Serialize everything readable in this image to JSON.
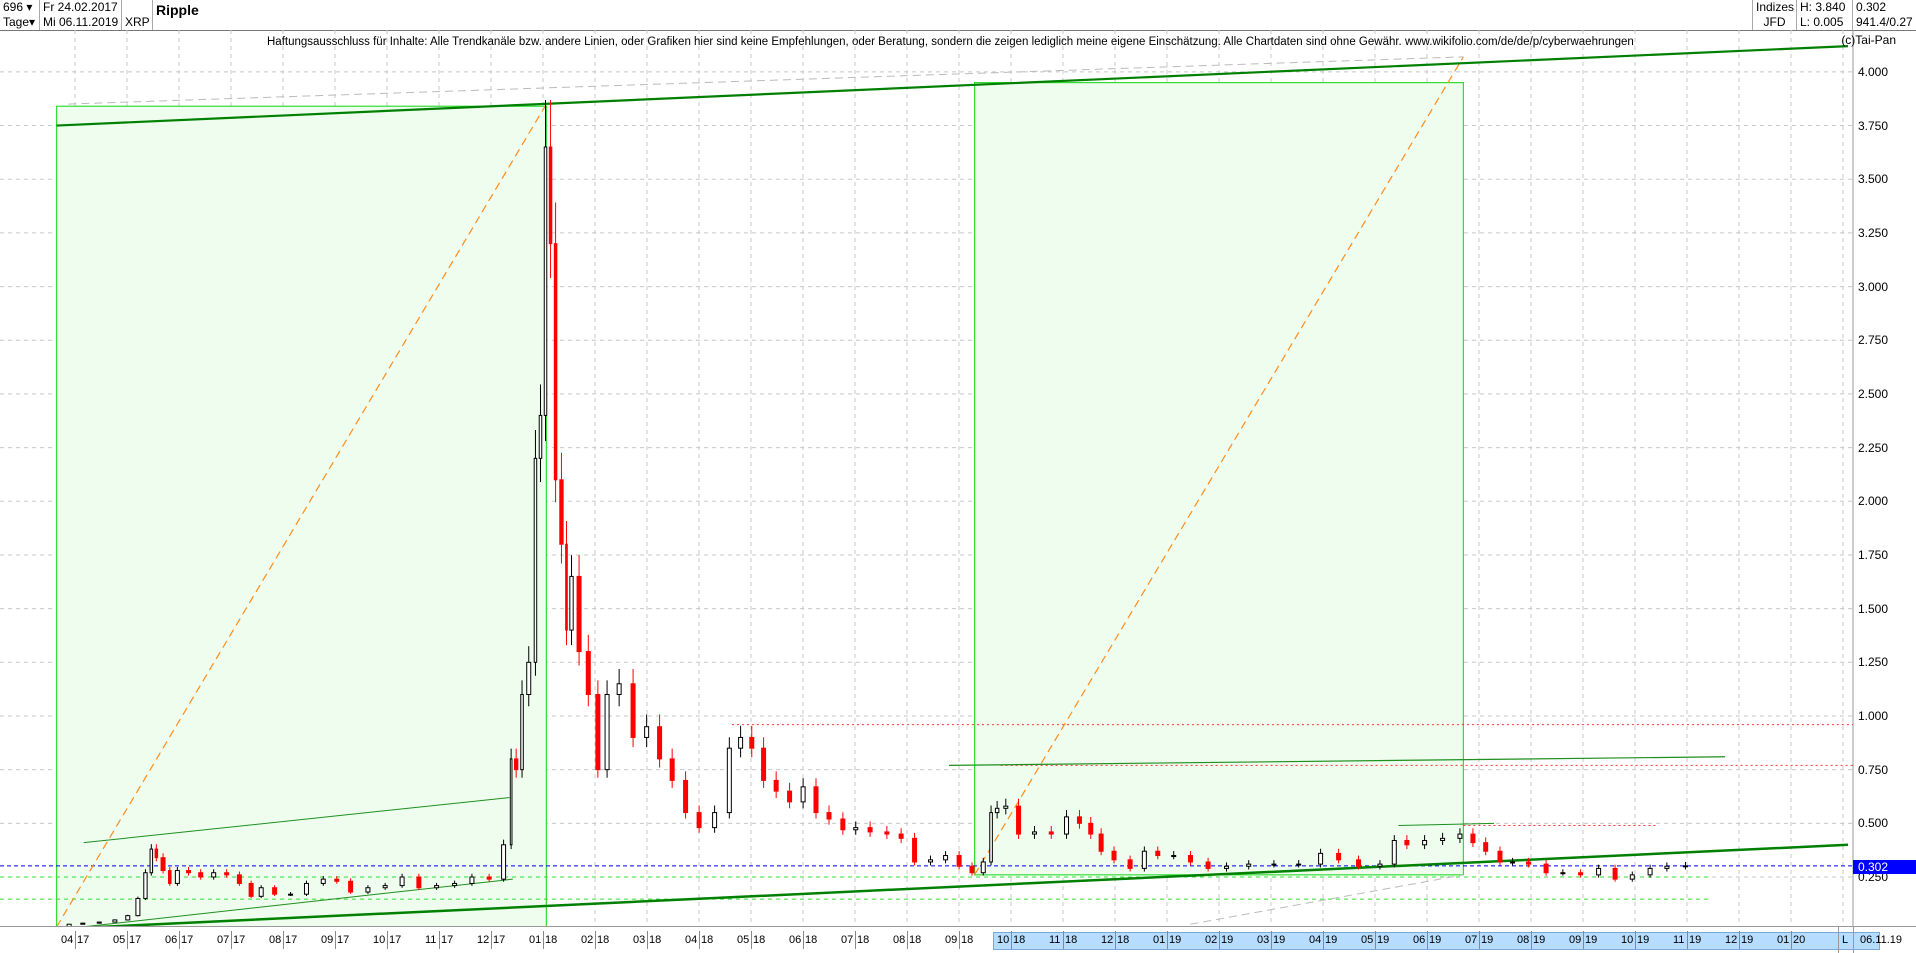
{
  "header": {
    "count": "696",
    "period": "Tage",
    "date_from": "Fr 24.02.2017",
    "date_to": "Mi 06.11.2019",
    "symbol": "XRP",
    "title": "Ripple",
    "group": "Indizes",
    "broker": "JFD",
    "high": "H: 3.840",
    "low": "L: 0.005",
    "last": "0.302",
    "extra": "941.4/0.27"
  },
  "disclaimer": "Haftungsausschluss für Inhalte: Alle Trendkanäle bzw. andere Linien, oder Grafiken hier sind keine Empfehlungen, oder Beratung, sondern die zeigen lediglich meine eigene Einschätzung. Alle Chartdaten sind ohne Gewähr.  www.wikifolio.com/de/de/p/cyberwaehrungen",
  "copyright": "(c)Tai-Pan",
  "footer": {
    "scale_mode": "L",
    "last_date": "06.11.19"
  },
  "colors": {
    "up": "#000000",
    "down": "#ff0000",
    "box": "#33dd33",
    "box_fill": "#eefdee",
    "trend": "#008000",
    "current": "#0000ff"
  },
  "chart_data": {
    "type": "candlestick",
    "title": "Ripple",
    "ylim": [
      0,
      4.1
    ],
    "grid": true,
    "y_ticks": [
      "0.250",
      "0.500",
      "0.750",
      "1.000",
      "1.250",
      "1.500",
      "1.750",
      "2.000",
      "2.250",
      "2.500",
      "2.750",
      "3.000",
      "3.250",
      "3.500",
      "3.750",
      "4.000"
    ],
    "x_ticks": [
      [
        "04",
        "17"
      ],
      [
        "05",
        "17"
      ],
      [
        "06",
        "17"
      ],
      [
        "07",
        "17"
      ],
      [
        "08",
        "17"
      ],
      [
        "09",
        "17"
      ],
      [
        "10",
        "17"
      ],
      [
        "11",
        "17"
      ],
      [
        "12",
        "17"
      ],
      [
        "01",
        "18"
      ],
      [
        "02",
        "18"
      ],
      [
        "03",
        "18"
      ],
      [
        "04",
        "18"
      ],
      [
        "05",
        "18"
      ],
      [
        "06",
        "18"
      ],
      [
        "07",
        "18"
      ],
      [
        "08",
        "18"
      ],
      [
        "09",
        "18"
      ],
      [
        "10",
        "18"
      ],
      [
        "11",
        "18"
      ],
      [
        "12",
        "18"
      ],
      [
        "01",
        "19"
      ],
      [
        "02",
        "19"
      ],
      [
        "03",
        "19"
      ],
      [
        "04",
        "19"
      ],
      [
        "05",
        "19"
      ],
      [
        "06",
        "19"
      ],
      [
        "07",
        "19"
      ],
      [
        "08",
        "19"
      ],
      [
        "09",
        "19"
      ],
      [
        "10",
        "19"
      ],
      [
        "11",
        "19"
      ],
      [
        "12",
        "19"
      ],
      [
        "01",
        "20"
      ]
    ],
    "current_price": "0.302",
    "series": [
      [
        "2017-02-24",
        0.005
      ],
      [
        "2017-03-15",
        0.006
      ],
      [
        "2017-03-25",
        0.008
      ],
      [
        "2017-04-01",
        0.03
      ],
      [
        "2017-04-10",
        0.035
      ],
      [
        "2017-04-20",
        0.04
      ],
      [
        "2017-04-28",
        0.05
      ],
      [
        "2017-05-05",
        0.07
      ],
      [
        "2017-05-10",
        0.15
      ],
      [
        "2017-05-14",
        0.27
      ],
      [
        "2017-05-17",
        0.38
      ],
      [
        "2017-05-20",
        0.34
      ],
      [
        "2017-05-25",
        0.28
      ],
      [
        "2017-05-28",
        0.22
      ],
      [
        "2017-06-03",
        0.28
      ],
      [
        "2017-06-10",
        0.27
      ],
      [
        "2017-06-17",
        0.25
      ],
      [
        "2017-06-25",
        0.27
      ],
      [
        "2017-07-02",
        0.26
      ],
      [
        "2017-07-10",
        0.22
      ],
      [
        "2017-07-16",
        0.16
      ],
      [
        "2017-07-22",
        0.2
      ],
      [
        "2017-08-01",
        0.17
      ],
      [
        "2017-08-10",
        0.17
      ],
      [
        "2017-08-20",
        0.22
      ],
      [
        "2017-08-30",
        0.24
      ],
      [
        "2017-09-05",
        0.23
      ],
      [
        "2017-09-15",
        0.18
      ],
      [
        "2017-09-25",
        0.2
      ],
      [
        "2017-10-05",
        0.21
      ],
      [
        "2017-10-15",
        0.25
      ],
      [
        "2017-10-25",
        0.2
      ],
      [
        "2017-11-05",
        0.21
      ],
      [
        "2017-11-15",
        0.22
      ],
      [
        "2017-11-25",
        0.25
      ],
      [
        "2017-12-05",
        0.24
      ],
      [
        "2017-12-12",
        0.4
      ],
      [
        "2017-12-14",
        0.8
      ],
      [
        "2017-12-18",
        0.75
      ],
      [
        "2017-12-21",
        1.1
      ],
      [
        "2017-12-26",
        1.25
      ],
      [
        "2017-12-29",
        2.2
      ],
      [
        "2018-01-01",
        2.4
      ],
      [
        "2018-01-04",
        3.65
      ],
      [
        "2018-01-07",
        3.2
      ],
      [
        "2018-01-10",
        2.1
      ],
      [
        "2018-01-14",
        1.8
      ],
      [
        "2018-01-16",
        1.4
      ],
      [
        "2018-01-20",
        1.65
      ],
      [
        "2018-01-25",
        1.3
      ],
      [
        "2018-01-31",
        1.1
      ],
      [
        "2018-02-05",
        0.75
      ],
      [
        "2018-02-10",
        1.1
      ],
      [
        "2018-02-18",
        1.15
      ],
      [
        "2018-02-25",
        0.9
      ],
      [
        "2018-03-05",
        0.95
      ],
      [
        "2018-03-12",
        0.8
      ],
      [
        "2018-03-20",
        0.7
      ],
      [
        "2018-03-28",
        0.55
      ],
      [
        "2018-04-05",
        0.48
      ],
      [
        "2018-04-15",
        0.55
      ],
      [
        "2018-04-22",
        0.85
      ],
      [
        "2018-04-28",
        0.9
      ],
      [
        "2018-05-05",
        0.85
      ],
      [
        "2018-05-12",
        0.7
      ],
      [
        "2018-05-20",
        0.65
      ],
      [
        "2018-05-28",
        0.6
      ],
      [
        "2018-06-05",
        0.67
      ],
      [
        "2018-06-12",
        0.55
      ],
      [
        "2018-06-20",
        0.52
      ],
      [
        "2018-06-28",
        0.47
      ],
      [
        "2018-07-05",
        0.48
      ],
      [
        "2018-07-15",
        0.46
      ],
      [
        "2018-07-25",
        0.45
      ],
      [
        "2018-08-01",
        0.43
      ],
      [
        "2018-08-10",
        0.32
      ],
      [
        "2018-08-20",
        0.33
      ],
      [
        "2018-08-28",
        0.35
      ],
      [
        "2018-09-05",
        0.3
      ],
      [
        "2018-09-12",
        0.27
      ],
      [
        "2018-09-18",
        0.32
      ],
      [
        "2018-09-21",
        0.55
      ],
      [
        "2018-09-25",
        0.57
      ],
      [
        "2018-10-01",
        0.58
      ],
      [
        "2018-10-10",
        0.45
      ],
      [
        "2018-10-20",
        0.46
      ],
      [
        "2018-10-30",
        0.45
      ],
      [
        "2018-11-07",
        0.53
      ],
      [
        "2018-11-14",
        0.5
      ],
      [
        "2018-11-20",
        0.45
      ],
      [
        "2018-11-26",
        0.37
      ],
      [
        "2018-12-05",
        0.33
      ],
      [
        "2018-12-15",
        0.29
      ],
      [
        "2018-12-22",
        0.37
      ],
      [
        "2018-12-31",
        0.35
      ],
      [
        "2019-01-10",
        0.35
      ],
      [
        "2019-01-20",
        0.32
      ],
      [
        "2019-01-31",
        0.29
      ],
      [
        "2019-02-10",
        0.3
      ],
      [
        "2019-02-24",
        0.31
      ],
      [
        "2019-03-10",
        0.31
      ],
      [
        "2019-03-25",
        0.31
      ],
      [
        "2019-04-05",
        0.36
      ],
      [
        "2019-04-15",
        0.33
      ],
      [
        "2019-04-28",
        0.3
      ],
      [
        "2019-05-10",
        0.31
      ],
      [
        "2019-05-15",
        0.42
      ],
      [
        "2019-05-25",
        0.4
      ],
      [
        "2019-06-05",
        0.42
      ],
      [
        "2019-06-15",
        0.43
      ],
      [
        "2019-06-25",
        0.45
      ],
      [
        "2019-06-30",
        0.41
      ],
      [
        "2019-07-10",
        0.37
      ],
      [
        "2019-07-17",
        0.32
      ],
      [
        "2019-07-25",
        0.32
      ],
      [
        "2019-08-05",
        0.31
      ],
      [
        "2019-08-15",
        0.27
      ],
      [
        "2019-08-25",
        0.27
      ],
      [
        "2019-09-05",
        0.26
      ],
      [
        "2019-09-15",
        0.29
      ],
      [
        "2019-09-24",
        0.24
      ],
      [
        "2019-10-05",
        0.26
      ],
      [
        "2019-10-15",
        0.29
      ],
      [
        "2019-10-25",
        0.3
      ],
      [
        "2019-11-06",
        0.302
      ]
    ]
  }
}
